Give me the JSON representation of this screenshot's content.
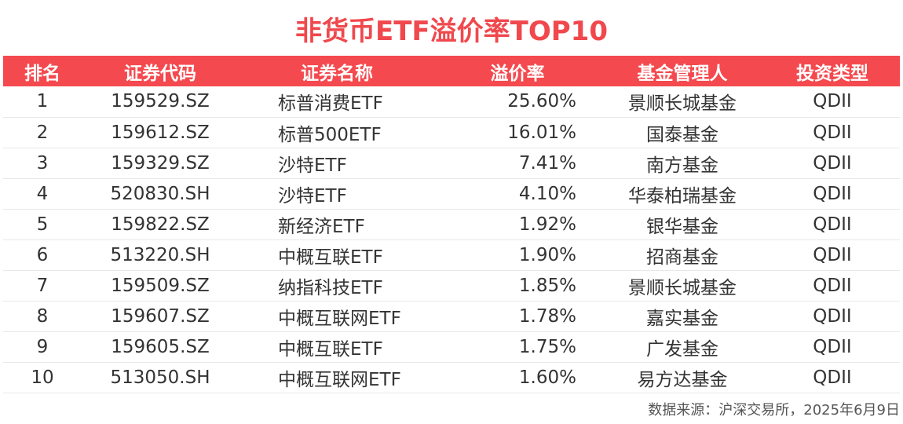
{
  "title": "非货币ETF溢价率TOP10",
  "chart_data": {
    "type": "table",
    "title": "非货币ETF溢价率TOP10",
    "columns": [
      "排名",
      "证券代码",
      "证券名称",
      "溢价率",
      "基金管理人",
      "投资类型"
    ],
    "rows": [
      {
        "rank": "1",
        "code": "159529.SZ",
        "name": "标普消费ETF",
        "premium": "25.60%",
        "manager": "景顺长城基金",
        "type": "QDII"
      },
      {
        "rank": "2",
        "code": "159612.SZ",
        "name": "标普500ETF",
        "premium": "16.01%",
        "manager": "国泰基金",
        "type": "QDII"
      },
      {
        "rank": "3",
        "code": "159329.SZ",
        "name": "沙特ETF",
        "premium": "7.41%",
        "manager": "南方基金",
        "type": "QDII"
      },
      {
        "rank": "4",
        "code": "520830.SH",
        "name": "沙特ETF",
        "premium": "4.10%",
        "manager": "华泰柏瑞基金",
        "type": "QDII"
      },
      {
        "rank": "5",
        "code": "159822.SZ",
        "name": "新经济ETF",
        "premium": "1.92%",
        "manager": "银华基金",
        "type": "QDII"
      },
      {
        "rank": "6",
        "code": "513220.SH",
        "name": "中概互联ETF",
        "premium": "1.90%",
        "manager": "招商基金",
        "type": "QDII"
      },
      {
        "rank": "7",
        "code": "159509.SZ",
        "name": "纳指科技ETF",
        "premium": "1.85%",
        "manager": "景顺长城基金",
        "type": "QDII"
      },
      {
        "rank": "8",
        "code": "159607.SZ",
        "name": "中概互联网ETF",
        "premium": "1.78%",
        "manager": "嘉实基金",
        "type": "QDII"
      },
      {
        "rank": "9",
        "code": "159605.SZ",
        "name": "中概互联ETF",
        "premium": "1.75%",
        "manager": "广发基金",
        "type": "QDII"
      },
      {
        "rank": "10",
        "code": "513050.SH",
        "name": "中概互联网ETF",
        "premium": "1.60%",
        "manager": "易方达基金",
        "type": "QDII"
      }
    ]
  },
  "source": "数据来源：沪深交易所，2025年6月9日",
  "colors": {
    "title": "#f0484d",
    "header_bg": "#f4494e",
    "header_text": "#ffffff",
    "row_divider": "#e8e8e8"
  }
}
